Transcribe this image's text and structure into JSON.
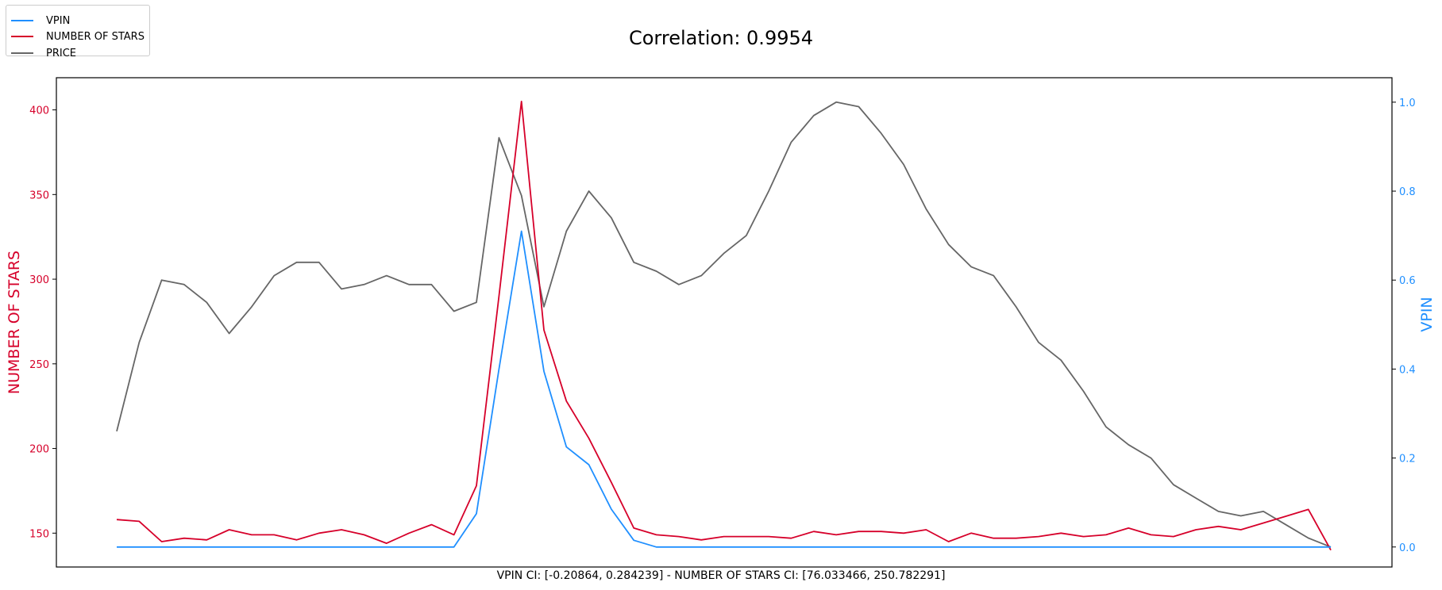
{
  "chart_data": {
    "type": "line",
    "title": "Correlation: 0.9954",
    "footnote": "VPIN CI: [-0.20864, 0.284239] - NUMBER OF STARS CI: [76.033466, 250.782291]",
    "legend": {
      "placement": "top-left",
      "entries": [
        {
          "label": "VPIN",
          "color": "#1f8fff"
        },
        {
          "label": "NUMBER OF STARS",
          "color": "#d6002a"
        },
        {
          "label": "PRICE",
          "color": "#666666"
        }
      ]
    },
    "x": [
      0,
      1,
      2,
      3,
      4,
      5,
      6,
      7,
      8,
      9,
      10,
      11,
      12,
      13,
      14,
      15,
      16,
      17,
      18,
      19,
      20,
      21,
      22,
      23,
      24,
      25,
      26,
      27,
      28,
      29,
      30,
      31,
      32,
      33,
      34,
      35,
      36,
      37,
      38,
      39,
      40,
      41,
      42,
      43,
      44,
      45,
      46,
      47,
      48,
      49,
      50,
      51,
      52,
      53,
      54
    ],
    "x_ticks_shown": false,
    "left_axis": {
      "label": "NUMBER OF STARS",
      "color": "#d6002a",
      "ylim": [
        130,
        419
      ],
      "ticks": [
        150,
        200,
        250,
        300,
        350,
        400
      ]
    },
    "right_axis": {
      "label": "VPIN",
      "color": "#1f8fff",
      "ylim": [
        -0.045,
        1.055
      ],
      "ticks": [
        "0.0",
        "0.2",
        "0.4",
        "0.6",
        "0.8",
        "1.0"
      ]
    },
    "series": [
      {
        "name": "NUMBER OF STARS",
        "axis": "left",
        "color": "#d6002a",
        "values": [
          158,
          157,
          145,
          147,
          146,
          152,
          149,
          149,
          146,
          150,
          152,
          149,
          144,
          150,
          155,
          149,
          178,
          290,
          405,
          270,
          228,
          206,
          180,
          153,
          149,
          148,
          146,
          148,
          148,
          148,
          147,
          151,
          149,
          151,
          151,
          150,
          152,
          145,
          150,
          147,
          147,
          148,
          150,
          148,
          149,
          153,
          149,
          148,
          152,
          154,
          152,
          156,
          160,
          164,
          140
        ]
      },
      {
        "name": "VPIN",
        "axis": "right",
        "color": "#1f8fff",
        "values": [
          0,
          0,
          0,
          0,
          0,
          0,
          0,
          0,
          0,
          0,
          0,
          0,
          0,
          0,
          0,
          0,
          0.075,
          0.4,
          0.71,
          0.395,
          0.225,
          0.185,
          0.085,
          0.015,
          0,
          0,
          0,
          0,
          0,
          0,
          0,
          0,
          0,
          0,
          0,
          0,
          0,
          0,
          0,
          0,
          0,
          0,
          0,
          0,
          0,
          0,
          0,
          0,
          0,
          0,
          0,
          0,
          0,
          0,
          0
        ]
      },
      {
        "name": "PRICE",
        "axis": "right",
        "color": "#666666",
        "values": [
          0.26,
          0.46,
          0.6,
          0.59,
          0.55,
          0.48,
          0.54,
          0.61,
          0.64,
          0.64,
          0.58,
          0.59,
          0.61,
          0.59,
          0.59,
          0.53,
          0.55,
          0.92,
          0.79,
          0.54,
          0.71,
          0.8,
          0.74,
          0.64,
          0.62,
          0.59,
          0.61,
          0.66,
          0.7,
          0.8,
          0.91,
          0.97,
          1.0,
          0.99,
          0.93,
          0.86,
          0.76,
          0.68,
          0.63,
          0.61,
          0.54,
          0.46,
          0.42,
          0.35,
          0.27,
          0.23,
          0.2,
          0.14,
          0.11,
          0.08,
          0.07,
          0.08,
          0.05,
          0.02,
          0.0
        ]
      }
    ]
  }
}
